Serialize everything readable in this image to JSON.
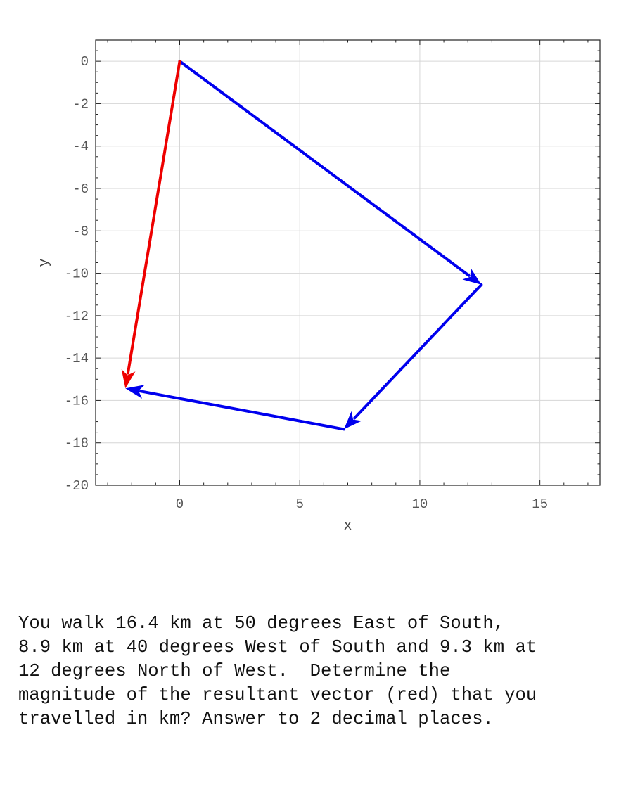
{
  "chart_data": {
    "type": "vector",
    "xlabel": "x",
    "ylabel": "y",
    "xlim": [
      -3.5,
      17.5
    ],
    "ylim": [
      -20,
      1
    ],
    "x_ticks": [
      0,
      5,
      10,
      15
    ],
    "y_ticks": [
      0,
      -2,
      -4,
      -6,
      -8,
      -10,
      -12,
      -14,
      -16,
      -18,
      -20
    ],
    "x_tick_labels": [
      "0",
      "5",
      "10",
      "15"
    ],
    "y_tick_labels": [
      "0",
      "-2",
      "-4",
      "-6",
      "-8",
      "-10",
      "-12",
      "-14",
      "-16",
      "-18",
      "-20"
    ],
    "grid": true,
    "vectors": [
      {
        "from": [
          0,
          0
        ],
        "to": [
          12.56,
          -10.54
        ],
        "color": "#0000ee"
      },
      {
        "from": [
          12.56,
          -10.54
        ],
        "to": [
          6.84,
          -17.36
        ],
        "color": "#0000ee"
      },
      {
        "from": [
          6.84,
          -17.36
        ],
        "to": [
          -2.26,
          -15.43
        ],
        "color": "#0000ee"
      },
      {
        "from": [
          0,
          0
        ],
        "to": [
          -2.26,
          -15.43
        ],
        "color": "#ee0000"
      }
    ]
  },
  "question": {
    "lines": [
      "You walk 16.4 km at 50 degrees East of South,",
      "8.9 km at 40 degrees West of South and 9.3 km at",
      "12 degrees North of West.  Determine the",
      "magnitude of the resultant vector (red) that you",
      "travelled in km? Answer to 2 decimal places."
    ]
  }
}
